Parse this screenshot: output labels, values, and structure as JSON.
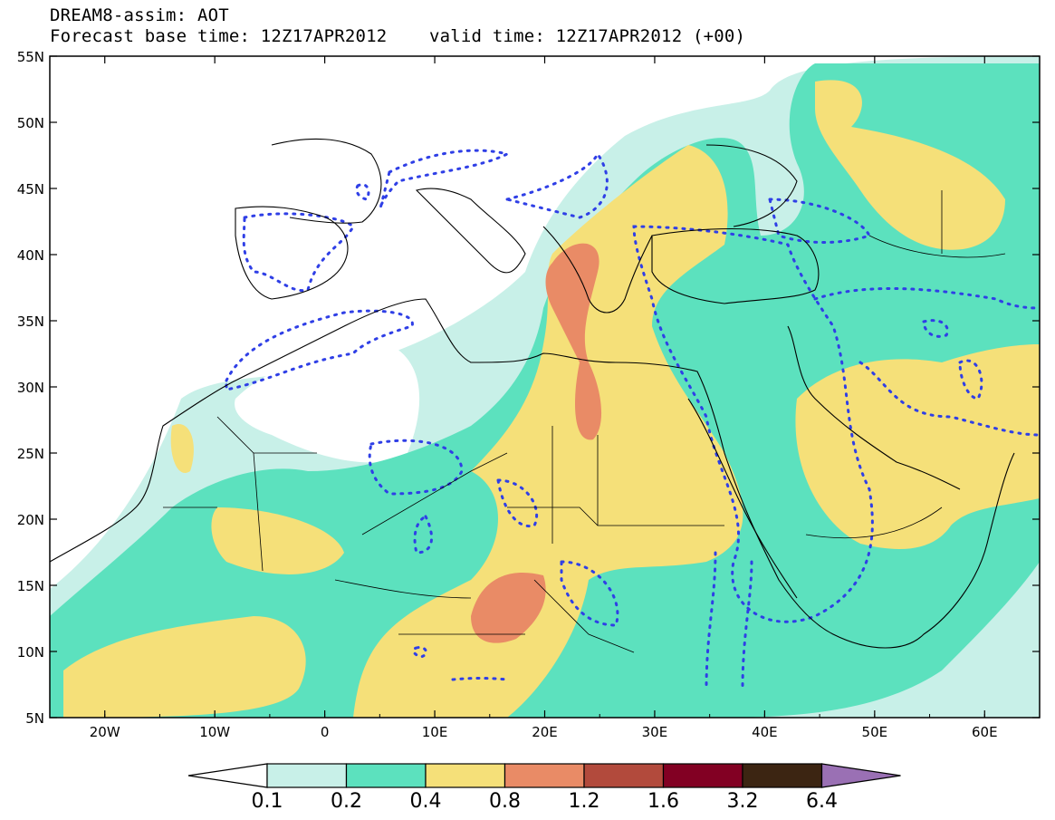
{
  "title_line1": "DREAM8-assim: AOT",
  "title_line2": "Forecast base time: 12Z17APR2012    valid time: 12Z17APR2012 (+00)",
  "lat_labels": [
    "55N",
    "50N",
    "45N",
    "40N",
    "35N",
    "30N",
    "25N",
    "20N",
    "15N",
    "10N",
    "5N"
  ],
  "lat_values": [
    55,
    50,
    45,
    40,
    35,
    30,
    25,
    20,
    15,
    10,
    5
  ],
  "lon_labels": [
    "20W",
    "10W",
    "0",
    "10E",
    "20E",
    "30E",
    "40E",
    "50E",
    "60E"
  ],
  "lon_values": [
    -20,
    -10,
    0,
    10,
    20,
    30,
    40,
    50,
    60
  ],
  "extent": {
    "lon_min": -25,
    "lon_max": 65,
    "lat_min": 5,
    "lat_max": 55
  },
  "colorbar": {
    "labels": [
      "0.1",
      "0.2",
      "0.4",
      "0.8",
      "1.2",
      "1.6",
      "3.2",
      "6.4"
    ],
    "colors": [
      "#ffffff",
      "#c8f0e8",
      "#5ce1be",
      "#f5e079",
      "#e98b66",
      "#b24a3c",
      "#820023",
      "#3c2512",
      "#9a70b4"
    ]
  }
}
